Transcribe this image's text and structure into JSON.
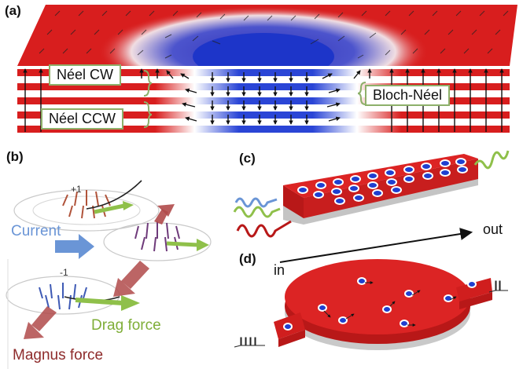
{
  "panels": {
    "a": {
      "label": "(a)",
      "box_labels": [
        "Néel CW",
        "Néel CCW",
        "Bloch-Néel"
      ]
    },
    "b": {
      "label": "(b)",
      "charges": [
        "+1",
        "-1"
      ],
      "current": "Current",
      "drag": "Drag force",
      "magnus": "Magnus force"
    },
    "c": {
      "label": "(c)",
      "out": "out"
    },
    "d": {
      "label": "(d)",
      "in": "in"
    }
  },
  "colors": {
    "red": "#d81e1e",
    "blue": "#1f3fd0",
    "box_border": "#8db06a",
    "current": "#6a95d6",
    "drag": "#8fc04a",
    "magnus": "#b04a4a"
  }
}
